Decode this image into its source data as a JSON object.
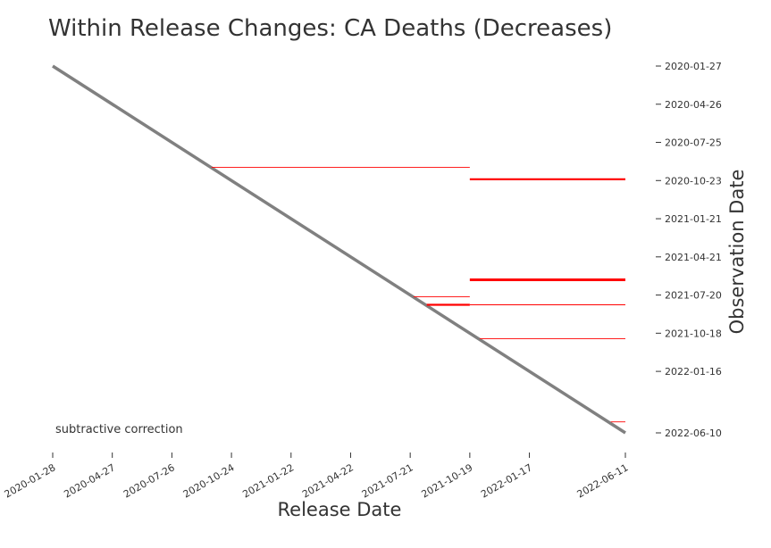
{
  "chart_data": {
    "type": "segments",
    "title": "Within Release Changes: CA Deaths (Decreases)",
    "x_label": "Release Date",
    "y_label": "Observation Date",
    "annotation": "subtractive correction",
    "annotation_color": "#ff0000",
    "xlim": [
      "2020-01-28",
      "2022-06-11"
    ],
    "ylim": [
      "2020-01-27",
      "2022-06-10"
    ],
    "y_inverted": true,
    "y_side": "right",
    "xticks": [
      "2020-01-28",
      "2020-04-27",
      "2020-07-26",
      "2020-10-24",
      "2021-01-22",
      "2021-04-22",
      "2021-07-21",
      "2021-10-19",
      "2022-01-17",
      "2022-06-11"
    ],
    "yticks": [
      "2020-01-27",
      "2020-04-26",
      "2020-07-25",
      "2020-10-23",
      "2021-01-21",
      "2021-04-21",
      "2021-07-20",
      "2021-10-18",
      "2022-01-16",
      "2022-06-10"
    ],
    "diagonal": {
      "color": "#808080",
      "x": [
        "2020-01-28",
        "2022-06-11"
      ],
      "y": [
        "2020-01-27",
        "2022-06-10"
      ]
    },
    "segment_color": "#ff0000",
    "segments": [
      {
        "y": "2020-09-22",
        "x": [
          "2020-09-24",
          "2021-10-19"
        ],
        "weight": "thin"
      },
      {
        "y": "2020-10-20",
        "x": [
          "2021-10-19",
          "2022-06-11"
        ],
        "weight": "thick"
      },
      {
        "y": "2021-06-14",
        "x": [
          "2021-10-19",
          "2022-06-11"
        ],
        "weight": "heavy"
      },
      {
        "y": "2021-07-24",
        "x": [
          "2021-07-26",
          "2021-10-19"
        ],
        "weight": "thin"
      },
      {
        "y": "2021-08-12",
        "x": [
          "2021-08-15",
          "2021-10-19"
        ],
        "weight": "thick"
      },
      {
        "y": "2021-08-12",
        "x": [
          "2021-10-19",
          "2022-06-11"
        ],
        "weight": "thin"
      },
      {
        "y": "2021-10-31",
        "x": [
          "2021-11-03",
          "2022-06-11"
        ],
        "weight": "thin"
      },
      {
        "y": "2022-05-15",
        "x": [
          "2022-05-20",
          "2022-06-11"
        ],
        "weight": "thin"
      }
    ]
  }
}
